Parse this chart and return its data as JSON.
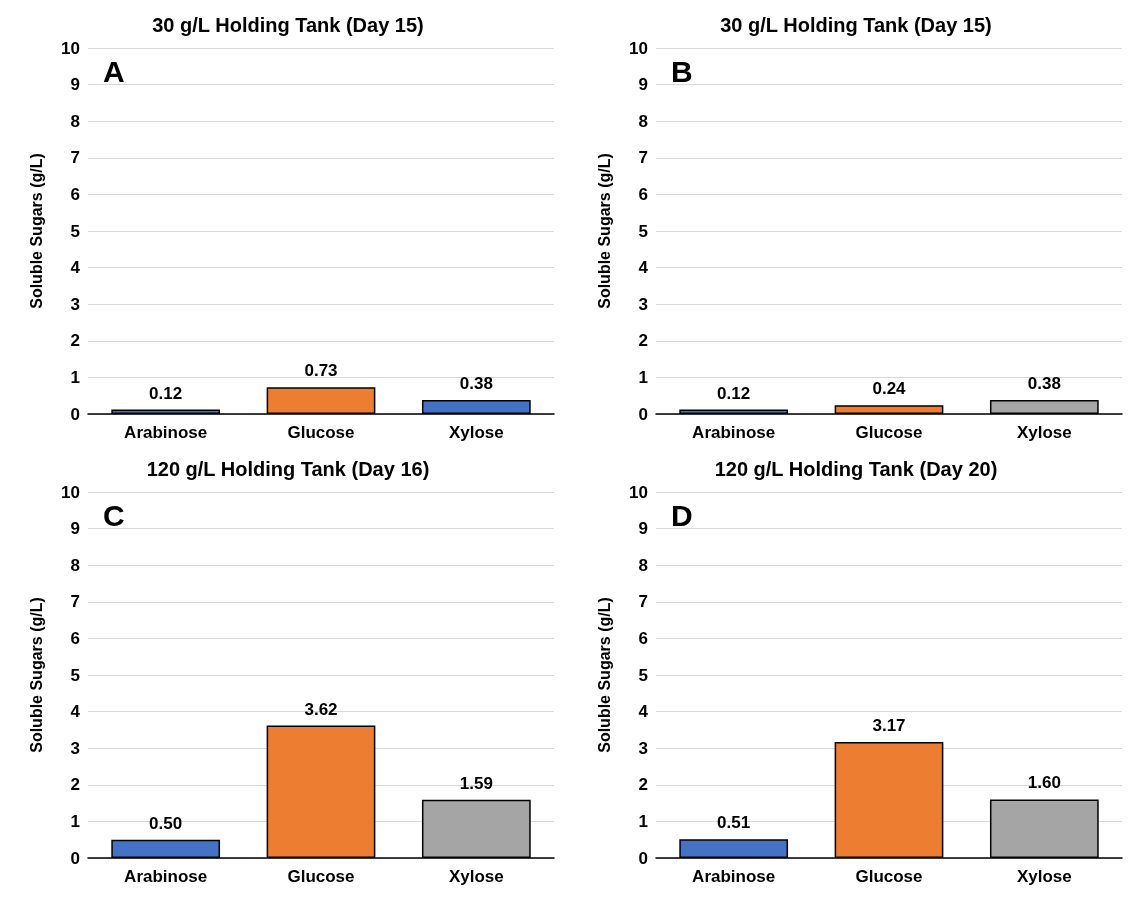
{
  "chart_data": [
    {
      "type": "bar",
      "title": "30 g/L Holding Tank (Day 15)",
      "ylabel": "Soluble Sugars (g/L)",
      "annotations": [
        "A"
      ],
      "categories": [
        "Arabinose",
        "Glucose",
        "Xylose"
      ],
      "values": [
        0.12,
        0.73,
        0.38
      ],
      "colors": [
        "#4472c4",
        "#ed7d31",
        "#4472c4"
      ],
      "value_labels": [
        "0.12",
        "0.73",
        "0.38"
      ],
      "ylim": [
        0,
        10
      ],
      "yticks": [
        0,
        1,
        2,
        3,
        4,
        5,
        6,
        7,
        8,
        9,
        10
      ],
      "grid": "y"
    },
    {
      "type": "bar",
      "title": "30 g/L Holding Tank (Day 15)",
      "ylabel": "Soluble Sugars (g/L)",
      "annotations": [
        "B"
      ],
      "categories": [
        "Arabinose",
        "Glucose",
        "Xylose"
      ],
      "values": [
        0.12,
        0.24,
        0.38
      ],
      "colors": [
        "#4472c4",
        "#ed7d31",
        "#a5a5a5"
      ],
      "value_labels": [
        "0.12",
        "0.24",
        "0.38"
      ],
      "ylim": [
        0,
        10
      ],
      "yticks": [
        0,
        1,
        2,
        3,
        4,
        5,
        6,
        7,
        8,
        9,
        10
      ],
      "grid": "y"
    },
    {
      "type": "bar",
      "title": "120 g/L Holding Tank (Day 16)",
      "ylabel": "Soluble Sugars (g/L)",
      "annotations": [
        "C"
      ],
      "categories": [
        "Arabinose",
        "Glucose",
        "Xylose"
      ],
      "values": [
        0.5,
        3.62,
        1.59
      ],
      "colors": [
        "#4472c4",
        "#ed7d31",
        "#a5a5a5"
      ],
      "value_labels": [
        "0.50",
        "3.62",
        "1.59"
      ],
      "ylim": [
        0,
        10
      ],
      "yticks": [
        0,
        1,
        2,
        3,
        4,
        5,
        6,
        7,
        8,
        9,
        10
      ],
      "grid": "y"
    },
    {
      "type": "bar",
      "title": "120 g/L Holding Tank (Day 20)",
      "ylabel": "Soluble Sugars (g/L)",
      "annotations": [
        "D"
      ],
      "categories": [
        "Arabinose",
        "Glucose",
        "Xylose"
      ],
      "values": [
        0.51,
        3.17,
        1.6
      ],
      "colors": [
        "#4472c4",
        "#ed7d31",
        "#a5a5a5"
      ],
      "value_labels": [
        "0.51",
        "3.17",
        "1.60"
      ],
      "ylim": [
        0,
        10
      ],
      "yticks": [
        0,
        1,
        2,
        3,
        4,
        5,
        6,
        7,
        8,
        9,
        10
      ],
      "grid": "y"
    }
  ]
}
